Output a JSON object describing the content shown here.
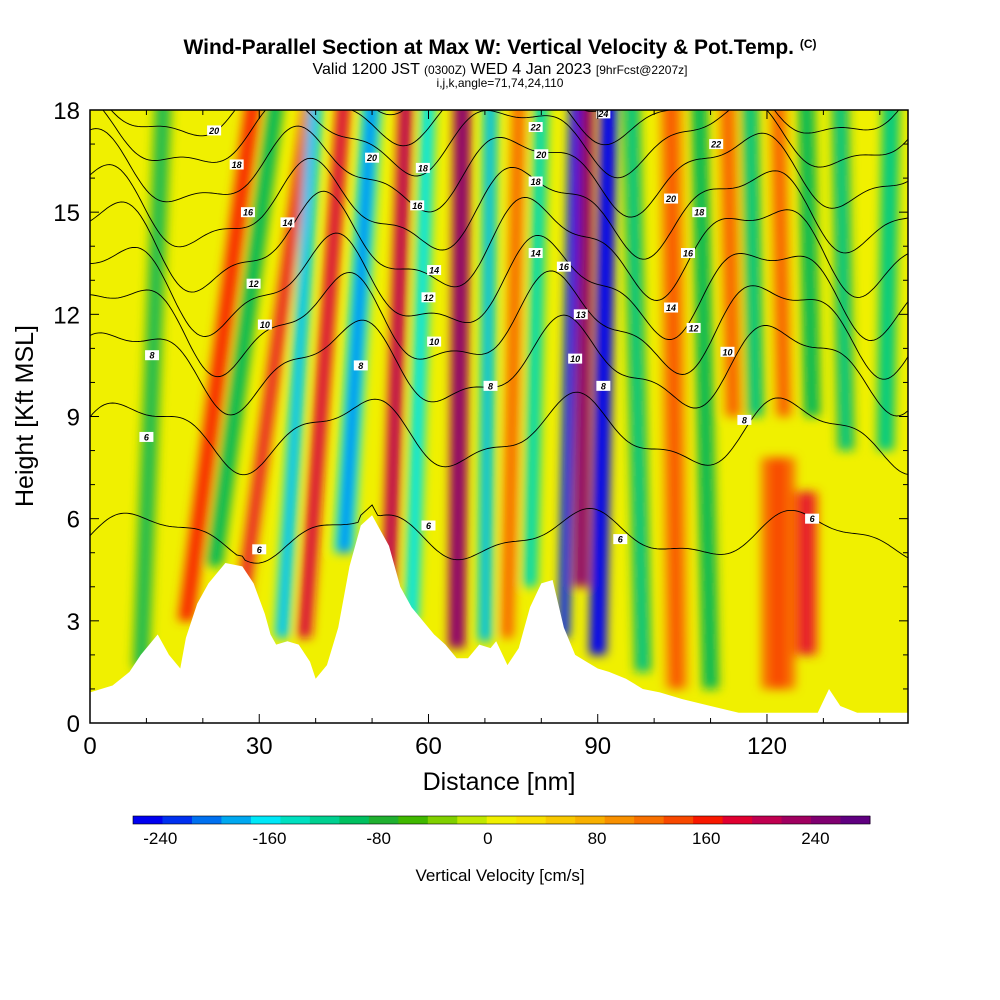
{
  "header": {
    "title_main": "Wind-Parallel Section at Max W: Vertical Velocity & Pot.Temp.",
    "title_copyright": "(C)",
    "valid_prefix": "Valid 1200 JST",
    "valid_utc": "(0300Z)",
    "valid_date": "WED 4 Jan 2023",
    "forecast_info": "[9hrFcst@2207z]",
    "indices": "i,j,k,angle=71,74,24,110"
  },
  "chart_data": {
    "type": "heatmap",
    "xlabel": "Distance [nm]",
    "ylabel": "Height [Kft MSL]",
    "xlim": [
      0,
      145
    ],
    "ylim": [
      0,
      18
    ],
    "x_ticks": [
      0,
      30,
      60,
      90,
      120
    ],
    "y_ticks": [
      0,
      3,
      6,
      9,
      12,
      15,
      18
    ],
    "colorbar": {
      "label": "Vertical Velocity [cm/s]",
      "range": [
        -260,
        280
      ],
      "tick_values": [
        -240,
        -160,
        -80,
        0,
        80,
        160,
        240
      ],
      "tick_labels": [
        "-240",
        "-160",
        "-80",
        "0",
        "80",
        "160",
        "240"
      ],
      "colors": [
        "#0000f0",
        "#0030f0",
        "#0070f0",
        "#00a8f0",
        "#00e8f8",
        "#00e0c0",
        "#00d090",
        "#00c060",
        "#20b030",
        "#40b800",
        "#80d000",
        "#c0e800",
        "#f0f000",
        "#f8e000",
        "#f8c800",
        "#f8b000",
        "#f89000",
        "#f87000",
        "#f84800",
        "#f81800",
        "#e00030",
        "#c00050",
        "#a00060",
        "#800070",
        "#600080"
      ]
    },
    "terrain": {
      "x": [
        0,
        4,
        7,
        9,
        12,
        14,
        16,
        17,
        19,
        21,
        24,
        27,
        29,
        31,
        32,
        33,
        35,
        37,
        39,
        40,
        42,
        44,
        46,
        48,
        50,
        53,
        55,
        57,
        59,
        61,
        63,
        65,
        67,
        69,
        71,
        72,
        74,
        76,
        78,
        80,
        82,
        84,
        86,
        88,
        90,
        92,
        95,
        98,
        101,
        105,
        110,
        115,
        120,
        125,
        129,
        131,
        133,
        136,
        140,
        145
      ],
      "y": [
        0.9,
        1.1,
        1.5,
        2.0,
        2.6,
        2.0,
        1.6,
        2.5,
        3.5,
        4.1,
        4.7,
        4.6,
        4.1,
        3.2,
        2.6,
        2.3,
        2.4,
        2.3,
        1.8,
        1.3,
        1.7,
        2.8,
        4.6,
        5.8,
        6.1,
        5.2,
        4.0,
        3.4,
        3.0,
        2.6,
        2.3,
        1.9,
        1.9,
        2.3,
        2.2,
        2.4,
        1.7,
        2.2,
        3.4,
        4.1,
        4.2,
        2.8,
        2.0,
        1.8,
        1.6,
        1.5,
        1.3,
        1.0,
        0.9,
        0.7,
        0.5,
        0.3,
        0.3,
        0.3,
        0.3,
        1.0,
        0.5,
        0.3,
        0.3,
        0.3
      ]
    },
    "vertical_velocity_features": [
      {
        "x": 9,
        "w": 3,
        "cx_top": 13,
        "y_bottom": 1.6,
        "y_top": 18,
        "value": -60
      },
      {
        "x": 17,
        "w": 3,
        "cx_top": 29,
        "y_bottom": 3.0,
        "y_top": 18,
        "value": 140
      },
      {
        "x": 22,
        "w": 3,
        "cx_top": 33,
        "y_bottom": 4.6,
        "y_top": 18,
        "value": -70
      },
      {
        "x": 27,
        "w": 2.5,
        "cx_top": 39,
        "y_bottom": 3.5,
        "y_top": 18,
        "value": 150
      },
      {
        "x": 34,
        "w": 2.5,
        "cx_top": 40,
        "y_bottom": 2.5,
        "y_top": 18,
        "value": -160
      },
      {
        "x": 38,
        "w": 2.5,
        "cx_top": 45,
        "y_bottom": 2.5,
        "y_top": 18,
        "value": 170
      },
      {
        "x": 45,
        "w": 3.5,
        "cx_top": 50,
        "y_bottom": 5.0,
        "y_top": 18,
        "value": -170
      },
      {
        "x": 53,
        "w": 2.5,
        "cx_top": 56,
        "y_bottom": 4.0,
        "y_top": 18,
        "value": 190
      },
      {
        "x": 57,
        "w": 2.5,
        "cx_top": 60,
        "y_bottom": 3.0,
        "y_top": 18,
        "value": -140
      },
      {
        "x": 65,
        "w": 3,
        "cx_top": 66,
        "y_bottom": 2.2,
        "y_top": 18,
        "value": 220
      },
      {
        "x": 70,
        "w": 2.5,
        "cx_top": 71,
        "y_bottom": 2.4,
        "y_top": 18,
        "value": -150
      },
      {
        "x": 74,
        "w": 2.5,
        "cx_top": 76,
        "y_bottom": 2.5,
        "y_top": 18,
        "value": 100
      },
      {
        "x": 78,
        "w": 2.5,
        "cx_top": 80,
        "y_bottom": 4.0,
        "y_top": 18,
        "value": -120
      },
      {
        "x": 84,
        "w": 2,
        "cx_top": 86,
        "y_bottom": 2.5,
        "y_top": 18,
        "value": -220
      },
      {
        "x": 87,
        "w": 2.5,
        "cx_top": 88,
        "y_bottom": 4.0,
        "y_top": 18,
        "value": 220
      },
      {
        "x": 90,
        "w": 3,
        "cx_top": 92,
        "y_bottom": 2.0,
        "y_top": 18,
        "value": -240
      },
      {
        "x": 98,
        "w": 3,
        "cx_top": 96,
        "y_bottom": 1.5,
        "y_top": 18,
        "value": -80
      },
      {
        "x": 104,
        "w": 4,
        "cx_top": 103,
        "y_bottom": 1.0,
        "y_top": 18,
        "value": 100
      },
      {
        "x": 110,
        "w": 3,
        "cx_top": 108,
        "y_bottom": 1.0,
        "y_top": 18,
        "value": -70
      },
      {
        "x": 114,
        "w": 3,
        "cx_top": 113,
        "y_bottom": 9.0,
        "y_top": 18,
        "value": 100
      },
      {
        "x": 118,
        "w": 3,
        "cx_top": 117,
        "y_bottom": 9.0,
        "y_top": 18,
        "value": -80
      },
      {
        "x": 123,
        "w": 3,
        "cx_top": 122,
        "y_bottom": 9.0,
        "y_top": 18,
        "value": 100
      },
      {
        "x": 128,
        "w": 3,
        "cx_top": 127,
        "y_bottom": 9.0,
        "y_top": 18,
        "value": -70
      },
      {
        "x": 134,
        "w": 3,
        "cx_top": 133,
        "y_bottom": 8.0,
        "y_top": 18,
        "value": -80
      },
      {
        "x": 141,
        "w": 3,
        "cx_top": 142,
        "y_bottom": 8.0,
        "y_top": 18,
        "value": -90
      },
      {
        "x": 122,
        "w": 6,
        "cx_top": 122,
        "y_bottom": 1.0,
        "y_top": 7.5,
        "value": 120
      },
      {
        "x": 127,
        "w": 4,
        "cx_top": 127,
        "y_bottom": 2.0,
        "y_top": 6.5,
        "value": 150
      }
    ],
    "potential_temperature_contours": [
      {
        "label": "6",
        "base": 5.5,
        "amp": 0.6
      },
      {
        "label": "6",
        "base": 8.5,
        "amp": 0.9
      },
      {
        "label": "8",
        "base": 10.5,
        "amp": 1.1
      },
      {
        "label": "10",
        "base": 11.7,
        "amp": 1.2
      },
      {
        "label": "12",
        "base": 12.8,
        "amp": 1.2
      },
      {
        "label": "14",
        "base": 14.0,
        "amp": 1.2
      },
      {
        "label": "16",
        "base": 15.1,
        "amp": 1.1
      },
      {
        "label": "18",
        "base": 16.2,
        "amp": 1.0
      },
      {
        "label": "20",
        "base": 17.2,
        "amp": 0.9
      },
      {
        "label": "22",
        "base": 18.0,
        "amp": 0.8
      },
      {
        "label": "24",
        "base": 18.8,
        "amp": 0.7
      }
    ],
    "contour_labels": [
      {
        "text": "20",
        "x": 22,
        "y": 17.4
      },
      {
        "text": "18",
        "x": 26,
        "y": 16.4
      },
      {
        "text": "16",
        "x": 28,
        "y": 15.0
      },
      {
        "text": "14",
        "x": 35,
        "y": 14.7
      },
      {
        "text": "12",
        "x": 29,
        "y": 12.9
      },
      {
        "text": "10",
        "x": 31,
        "y": 11.7
      },
      {
        "text": "8",
        "x": 11,
        "y": 10.8
      },
      {
        "text": "6",
        "x": 10,
        "y": 8.4
      },
      {
        "text": "20",
        "x": 50,
        "y": 16.6
      },
      {
        "text": "18",
        "x": 59,
        "y": 16.3
      },
      {
        "text": "16",
        "x": 58,
        "y": 15.2
      },
      {
        "text": "14",
        "x": 61,
        "y": 13.3
      },
      {
        "text": "12",
        "x": 60,
        "y": 12.5
      },
      {
        "text": "10",
        "x": 61,
        "y": 11.2
      },
      {
        "text": "8",
        "x": 48,
        "y": 10.5
      },
      {
        "text": "8",
        "x": 71,
        "y": 9.9
      },
      {
        "text": "22",
        "x": 79,
        "y": 17.5
      },
      {
        "text": "20",
        "x": 80,
        "y": 16.7
      },
      {
        "text": "18",
        "x": 79,
        "y": 15.9
      },
      {
        "text": "14",
        "x": 79,
        "y": 13.8
      },
      {
        "text": "16",
        "x": 84,
        "y": 13.4
      },
      {
        "text": "13",
        "x": 87,
        "y": 12.0
      },
      {
        "text": "10",
        "x": 86,
        "y": 10.7
      },
      {
        "text": "8",
        "x": 91,
        "y": 9.9
      },
      {
        "text": "24",
        "x": 91,
        "y": 17.9
      },
      {
        "text": "22",
        "x": 111,
        "y": 17.0
      },
      {
        "text": "20",
        "x": 103,
        "y": 15.4
      },
      {
        "text": "18",
        "x": 108,
        "y": 15.0
      },
      {
        "text": "16",
        "x": 106,
        "y": 13.8
      },
      {
        "text": "14",
        "x": 103,
        "y": 12.2
      },
      {
        "text": "12",
        "x": 107,
        "y": 11.6
      },
      {
        "text": "10",
        "x": 113,
        "y": 10.9
      },
      {
        "text": "8",
        "x": 116,
        "y": 8.9
      },
      {
        "text": "6",
        "x": 128,
        "y": 6.0
      },
      {
        "text": "6",
        "x": 60,
        "y": 5.8
      },
      {
        "text": "6",
        "x": 94,
        "y": 5.4
      },
      {
        "text": "6",
        "x": 30,
        "y": 5.1
      }
    ]
  }
}
